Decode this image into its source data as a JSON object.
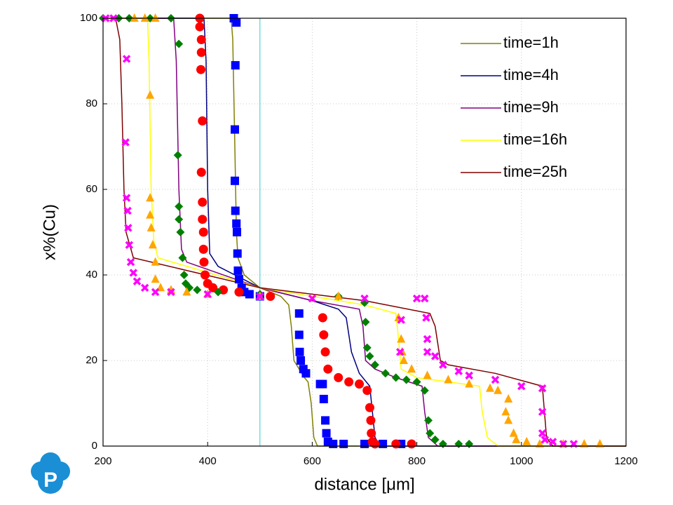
{
  "chart_data": {
    "type": "line",
    "x_label": "distance [μm]",
    "y_label": "x%(Cu)",
    "xlim": [
      200,
      1200
    ],
    "ylim": [
      0,
      100
    ],
    "xticks": [
      200,
      400,
      600,
      800,
      1000,
      1200
    ],
    "yticks": [
      0,
      20,
      40,
      60,
      80,
      100
    ],
    "grid": true,
    "legend": "upper right",
    "vline": {
      "x": 500,
      "color": "#33cccc"
    },
    "series": [
      {
        "type": "line",
        "name": "time=1h",
        "color": "#808000",
        "x": [
          200,
          445,
          448,
          452,
          455,
          458,
          470,
          500,
          540,
          555,
          560,
          565,
          575,
          585,
          592,
          598,
          603,
          610,
          1200
        ],
        "values": [
          100,
          100,
          95,
          70,
          50,
          44,
          40,
          37,
          35,
          33,
          28,
          20,
          18,
          16,
          15,
          10,
          2,
          0,
          0
        ]
      },
      {
        "type": "line",
        "name": "time=4h",
        "color": "#000080",
        "x": [
          200,
          393,
          397,
          400,
          404,
          420,
          500,
          600,
          650,
          665,
          675,
          690,
          710,
          715,
          720,
          730,
          1200
        ],
        "values": [
          100,
          100,
          90,
          60,
          45,
          42,
          37,
          34,
          32,
          30,
          22,
          17,
          14,
          8,
          2,
          0,
          0
        ]
      },
      {
        "type": "line",
        "name": "time=9h",
        "color": "#800080",
        "x": [
          200,
          335,
          340,
          345,
          350,
          360,
          500,
          600,
          690,
          697,
          702,
          720,
          760,
          810,
          815,
          822,
          840,
          1200
        ],
        "values": [
          100,
          100,
          90,
          60,
          46,
          43,
          37,
          34,
          32,
          28,
          20,
          18,
          16,
          14,
          8,
          2,
          0,
          0
        ]
      },
      {
        "type": "line",
        "name": "time=16h",
        "color": "#ffff00",
        "x": [
          200,
          285,
          288,
          292,
          297,
          305,
          500,
          700,
          760,
          765,
          770,
          800,
          920,
          925,
          935,
          955,
          1200
        ],
        "values": [
          100,
          100,
          90,
          60,
          48,
          44,
          37,
          33,
          31,
          25,
          18,
          16,
          14,
          8,
          2,
          0,
          0
        ]
      },
      {
        "type": "line",
        "name": "time=25h",
        "color": "#800000",
        "x": [
          224,
          232,
          236,
          240,
          244,
          258,
          500,
          700,
          825,
          835,
          845,
          860,
          950,
          1040,
          1044,
          1048,
          1060,
          1200
        ],
        "values": [
          100,
          95,
          80,
          60,
          50,
          44,
          37,
          34,
          31,
          28,
          20,
          19,
          17,
          14,
          8,
          2,
          0,
          0
        ]
      },
      {
        "type": "scatter",
        "marker": "square",
        "color": "#0000ff",
        "x": [
          450,
          455,
          453,
          452,
          452,
          453,
          455,
          456,
          457,
          458,
          460,
          465,
          470,
          480,
          500,
          575,
          575,
          576,
          578,
          583,
          588,
          615,
          620,
          622,
          625,
          627,
          630,
          640,
          660,
          700,
          735,
          770
        ],
        "values": [
          100,
          99,
          89,
          74,
          62,
          55,
          52,
          50,
          45,
          41,
          39,
          37,
          36,
          35.5,
          35,
          31,
          26,
          22,
          20,
          18,
          17,
          14.5,
          14.5,
          11,
          6,
          3,
          1,
          0.5,
          0.5,
          0.5,
          0.5,
          0.5
        ]
      },
      {
        "type": "scatter",
        "marker": "circle",
        "color": "#ff0000",
        "x": [
          385,
          385,
          388,
          388,
          387,
          390,
          388,
          390,
          390,
          392,
          392,
          393,
          395,
          400,
          410,
          430,
          460,
          520,
          620,
          622,
          625,
          630,
          650,
          670,
          690,
          705,
          710,
          712,
          713,
          715,
          720,
          760,
          790
        ],
        "values": [
          100,
          98,
          95,
          92,
          88,
          76,
          64,
          57,
          53,
          50,
          46,
          43,
          40,
          38,
          37,
          36.5,
          36,
          35,
          30,
          26,
          22,
          18,
          16,
          15,
          14.5,
          13,
          9,
          6,
          3,
          1,
          0.5,
          0.5,
          0.5
        ]
      },
      {
        "type": "scatter",
        "marker": "diamond",
        "color": "#008000",
        "x": [
          200,
          230,
          250,
          290,
          330,
          345,
          343,
          345,
          345,
          348,
          352,
          355,
          358,
          365,
          380,
          420,
          500,
          650,
          700,
          702,
          705,
          710,
          720,
          740,
          760,
          780,
          800,
          815,
          822,
          825,
          835,
          850,
          880,
          900
        ],
        "values": [
          100,
          100,
          100,
          100,
          100,
          94,
          68,
          56,
          53,
          50,
          44,
          40,
          38,
          37,
          36.5,
          36,
          35.5,
          35,
          33.5,
          29,
          23,
          21,
          19,
          17,
          16,
          15.5,
          15,
          13,
          6,
          3,
          1.5,
          0.5,
          0.5,
          0.5
        ]
      },
      {
        "type": "scatter",
        "marker": "triangle",
        "color": "#ffa500",
        "x": [
          260,
          280,
          300,
          290,
          290,
          290,
          292,
          295,
          300,
          300,
          310,
          330,
          360,
          400,
          500,
          650,
          765,
          770,
          772,
          775,
          790,
          820,
          860,
          900,
          940,
          955,
          975,
          970,
          975,
          985,
          990,
          1010,
          1035,
          1080,
          1120,
          1150
        ],
        "values": [
          100,
          100,
          100,
          82,
          58,
          54,
          51,
          47,
          43,
          39,
          37,
          36.5,
          36,
          35.5,
          35,
          35,
          30,
          25,
          22,
          20,
          18,
          16.5,
          15.5,
          14.5,
          13.5,
          13,
          11,
          8,
          6,
          3,
          1.5,
          1,
          0.5,
          0.5,
          0.5,
          0.5
        ]
      },
      {
        "type": "scatter",
        "marker": "cross",
        "color": "#ff00ff",
        "x": [
          205,
          220,
          245,
          243,
          245,
          247,
          248,
          250,
          253,
          258,
          265,
          280,
          300,
          330,
          400,
          500,
          600,
          700,
          800,
          815,
          770,
          768,
          818,
          820,
          820,
          835,
          850,
          880,
          900,
          950,
          1000,
          1040,
          1040,
          1040,
          1045,
          1060,
          1080,
          1100
        ],
        "values": [
          100,
          100,
          90.5,
          71,
          58,
          55,
          51,
          47,
          43,
          40.5,
          38.5,
          37,
          36,
          36,
          35.5,
          35,
          34.5,
          34.5,
          34.5,
          34.5,
          29.5,
          22,
          30,
          25,
          22,
          21,
          19,
          17.5,
          16.5,
          15.5,
          14,
          13.5,
          8,
          3,
          1.5,
          1,
          0.5,
          0.5
        ]
      }
    ]
  }
}
